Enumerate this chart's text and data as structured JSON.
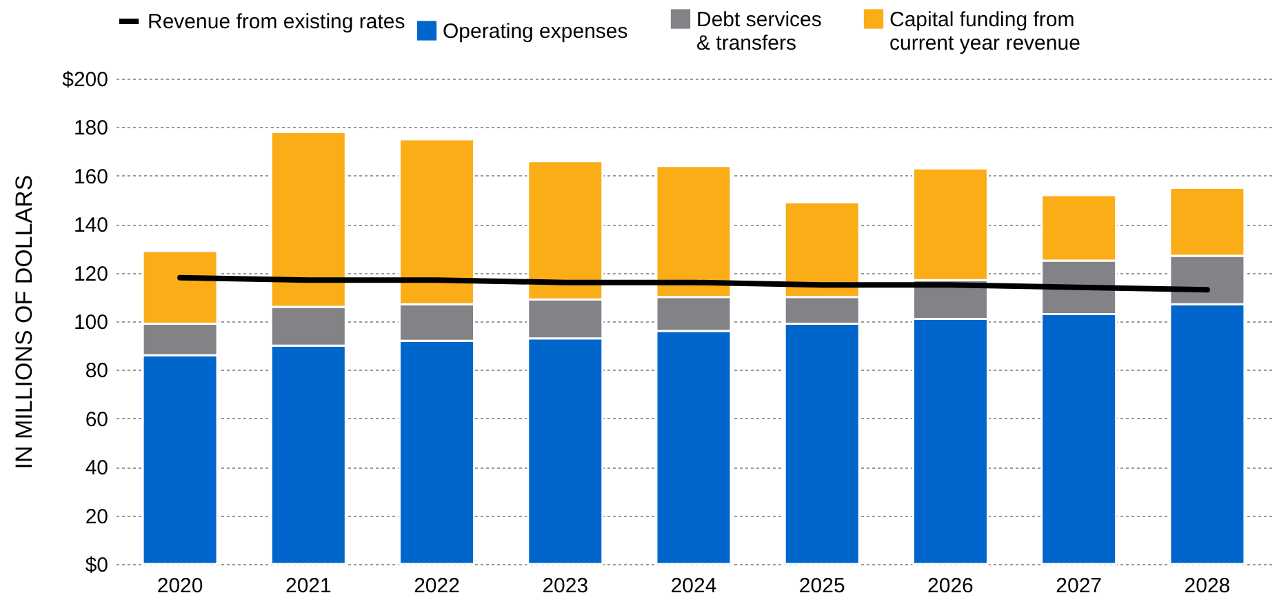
{
  "chart_data": {
    "type": "bar",
    "stacked": true,
    "ylabel": "IN MILLIONS OF DOLLARS",
    "categories": [
      "2020",
      "2021",
      "2022",
      "2023",
      "2024",
      "2025",
      "2026",
      "2027",
      "2028"
    ],
    "series": [
      {
        "name": "Operating expenses",
        "color": "#0066cc",
        "values": [
          86,
          90,
          92,
          93,
          96,
          99,
          101,
          103,
          107
        ]
      },
      {
        "name": "Debt services\n& transfers",
        "color": "#838387",
        "values": [
          13,
          16,
          15,
          16,
          14,
          11,
          16,
          22,
          20
        ]
      },
      {
        "name": "Capital funding from\ncurrent year revenue",
        "color": "#fbad18",
        "values": [
          30,
          72,
          68,
          57,
          54,
          39,
          46,
          27,
          28
        ]
      },
      {
        "name": "Revenue from existing rates",
        "color": "#000000",
        "type": "line",
        "values": [
          118,
          117,
          117,
          116,
          116,
          115,
          115,
          114,
          113
        ]
      }
    ],
    "ylim": [
      0,
      200
    ],
    "yticks": [
      {
        "value": 0,
        "label": "$0"
      },
      20,
      40,
      60,
      80,
      100,
      120,
      140,
      160,
      180,
      {
        "value": 200,
        "label": "$200"
      }
    ],
    "grid": "y",
    "legend": "top"
  }
}
